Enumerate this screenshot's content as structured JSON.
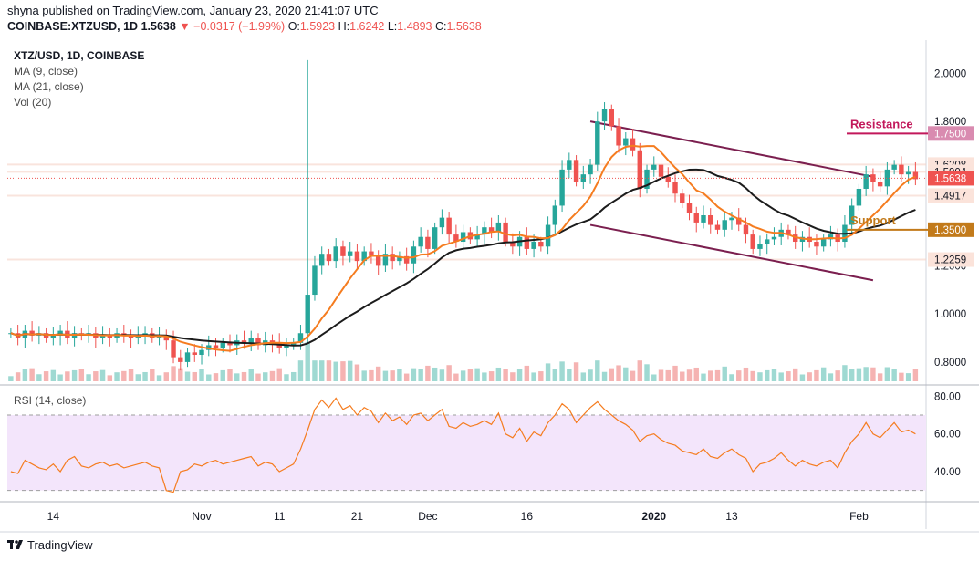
{
  "header": {
    "published": "shyna published on TradingView.com, January 23, 2020 21:41:07 UTC",
    "symbol": "COINBASE:XTZUSD, 1D",
    "last": "1.5638",
    "arrow": "▼",
    "change": "−0.0317 (−1.99%)",
    "o_label": "O:",
    "o_value": "1.5923",
    "h_label": "H:",
    "h_value": "1.6242",
    "l_label": "L:",
    "l_value": "1.4893",
    "c_label": "C:",
    "c_value": "1.5638"
  },
  "legend": {
    "symbol": "XTZ/USD, 1D, COINBASE",
    "ma9": "MA (9, close)",
    "ma21": "MA (21, close)",
    "vol": "Vol (20)"
  },
  "rsi_legend": "RSI (14, close)",
  "footer": {
    "brand": "TradingView"
  },
  "colors": {
    "up": "#26a69a",
    "down": "#ef5350",
    "ma9": "#f57c1f",
    "ma21": "#1c1c1c",
    "channel": "#7b1f4f",
    "rsi": "#f57c1f",
    "rsi_band": "#f3e5fb",
    "resistance": "#c2185b",
    "support": "#c27a1a"
  },
  "chart_data": [
    {
      "type": "candlestick",
      "title": "XTZ/USD, 1D, COINBASE",
      "x_ticks": [
        "14",
        "Nov",
        "11",
        "21",
        "Dec",
        "16",
        "2020",
        "13",
        "Feb"
      ],
      "y_ticks": [
        "0.8000",
        "1.0000",
        "1.2000",
        "1.8000",
        "2.0000"
      ],
      "ylim": [
        0.72,
        2.1
      ],
      "price_labels": [
        {
          "text": "1.7500",
          "value": 1.75,
          "kind": "resistance"
        },
        {
          "text": "1.6208",
          "value": 1.6208,
          "kind": "level"
        },
        {
          "text": "1.5904",
          "value": 1.5904,
          "kind": "level"
        },
        {
          "text": "1.5638",
          "value": 1.5638,
          "kind": "last"
        },
        {
          "text": "1.4917",
          "value": 1.4917,
          "kind": "level"
        },
        {
          "text": "1.3500",
          "value": 1.35,
          "kind": "support"
        },
        {
          "text": "1.2259",
          "value": 1.2259,
          "kind": "level"
        }
      ],
      "annotations": [
        {
          "text": "Resistance",
          "value": 1.75
        },
        {
          "text": "Support",
          "value": 1.35
        }
      ],
      "channel": {
        "upper": [
          [
            0,
            1.8
          ],
          [
            1,
            1.57
          ]
        ],
        "lower": [
          [
            0,
            1.37
          ],
          [
            1,
            1.14
          ]
        ]
      },
      "closes": [
        0.92,
        0.9,
        0.93,
        0.91,
        0.92,
        0.9,
        0.91,
        0.93,
        0.9,
        0.92,
        0.91,
        0.92,
        0.9,
        0.91,
        0.9,
        0.92,
        0.91,
        0.9,
        0.91,
        0.92,
        0.9,
        0.91,
        0.89,
        0.82,
        0.8,
        0.84,
        0.83,
        0.85,
        0.87,
        0.86,
        0.88,
        0.87,
        0.89,
        0.88,
        0.9,
        0.87,
        0.89,
        0.88,
        0.86,
        0.87,
        0.88,
        0.92,
        1.08,
        1.2,
        1.25,
        1.22,
        1.28,
        1.24,
        1.26,
        1.22,
        1.26,
        1.24,
        1.2,
        1.25,
        1.22,
        1.24,
        1.21,
        1.28,
        1.32,
        1.27,
        1.36,
        1.4,
        1.33,
        1.3,
        1.34,
        1.31,
        1.33,
        1.36,
        1.34,
        1.38,
        1.3,
        1.28,
        1.32,
        1.27,
        1.3,
        1.28,
        1.37,
        1.45,
        1.6,
        1.64,
        1.55,
        1.58,
        1.62,
        1.8,
        1.85,
        1.78,
        1.7,
        1.73,
        1.68,
        1.52,
        1.6,
        1.62,
        1.57,
        1.55,
        1.5,
        1.46,
        1.42,
        1.38,
        1.41,
        1.37,
        1.35,
        1.39,
        1.4,
        1.37,
        1.33,
        1.27,
        1.29,
        1.31,
        1.32,
        1.35,
        1.33,
        1.3,
        1.32,
        1.3,
        1.28,
        1.31,
        1.33,
        1.3,
        1.37,
        1.45,
        1.52,
        1.58,
        1.55,
        1.53,
        1.6,
        1.62,
        1.58,
        1.59,
        1.56
      ],
      "rsi": {
        "ylim": [
          25,
          85
        ],
        "y_ticks": [
          "40.00",
          "60.00",
          "80.00"
        ],
        "band": [
          30,
          70
        ],
        "values": [
          40,
          39,
          46,
          44,
          42,
          41,
          44,
          40,
          46,
          48,
          43,
          42,
          44,
          45,
          43,
          44,
          42,
          43,
          44,
          45,
          43,
          42,
          30,
          29,
          40,
          41,
          44,
          43,
          45,
          46,
          44,
          45,
          46,
          47,
          48,
          43,
          45,
          44,
          40,
          42,
          44,
          52,
          62,
          73,
          78,
          74,
          79,
          73,
          75,
          70,
          74,
          72,
          66,
          71,
          67,
          69,
          65,
          70,
          71,
          67,
          70,
          73,
          64,
          63,
          66,
          64,
          65,
          67,
          65,
          71,
          60,
          58,
          63,
          56,
          61,
          59,
          66,
          70,
          76,
          73,
          66,
          70,
          74,
          77,
          73,
          70,
          67,
          65,
          62,
          56,
          59,
          60,
          57,
          55,
          54,
          51,
          50,
          49,
          52,
          48,
          47,
          50,
          52,
          49,
          47,
          40,
          44,
          45,
          47,
          50,
          46,
          43,
          46,
          44,
          43,
          45,
          46,
          42,
          50,
          56,
          60,
          66,
          60,
          58,
          62,
          66,
          61,
          62,
          60
        ]
      }
    }
  ]
}
